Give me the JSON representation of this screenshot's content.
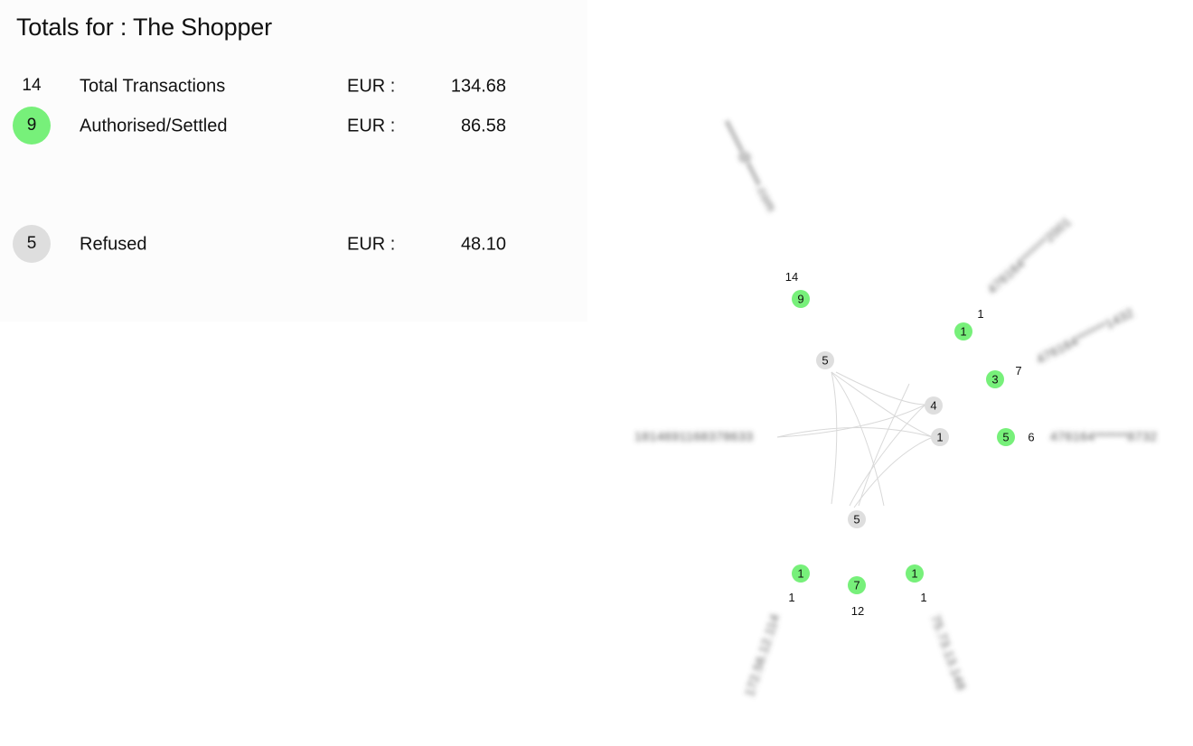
{
  "summary": {
    "title": "Totals for : The Shopper",
    "rows": [
      {
        "count": "14",
        "label": "Total Transactions",
        "currency": "EUR :",
        "amount": "134.68",
        "badge": null
      },
      {
        "count": "9",
        "label": "Authorised/Settled",
        "currency": "EUR :",
        "amount": "86.58",
        "badge": "green"
      },
      {
        "count": "5",
        "label": "Refused",
        "currency": "EUR :",
        "amount": "48.10",
        "badge": "grey"
      }
    ]
  },
  "colors": {
    "authorised": "#77f07a",
    "refused": "#dedede",
    "edge": "#d9d9d9"
  },
  "graph": {
    "hubs": [
      {
        "id": "refused-hub-top",
        "value": "5"
      },
      {
        "id": "refused-hub-bottom",
        "value": "5"
      },
      {
        "id": "refused-hub-right-1",
        "value": "4"
      },
      {
        "id": "refused-hub-right-2",
        "value": "1"
      }
    ],
    "branches": [
      {
        "id": "email",
        "authorised": "9",
        "total": "14",
        "label": "•••••••@•••••.com"
      },
      {
        "id": "card-1",
        "authorised": "1",
        "total": "1",
        "label": "476164******2001"
      },
      {
        "id": "card-2",
        "authorised": "3",
        "total": "7",
        "label": "476164******1432"
      },
      {
        "id": "card-3",
        "authorised": "5",
        "total": "6",
        "label": "476164******8732"
      },
      {
        "id": "shopper-ref",
        "authorised": null,
        "total": null,
        "label": "1814691168378633"
      },
      {
        "id": "ip-1",
        "authorised": "1",
        "total": "1",
        "label": "172.56.12.114"
      },
      {
        "id": "ip-center",
        "authorised": "7",
        "total": "12",
        "label": ""
      },
      {
        "id": "ip-2",
        "authorised": "1",
        "total": "1",
        "label": "75.73.13.148"
      }
    ]
  }
}
